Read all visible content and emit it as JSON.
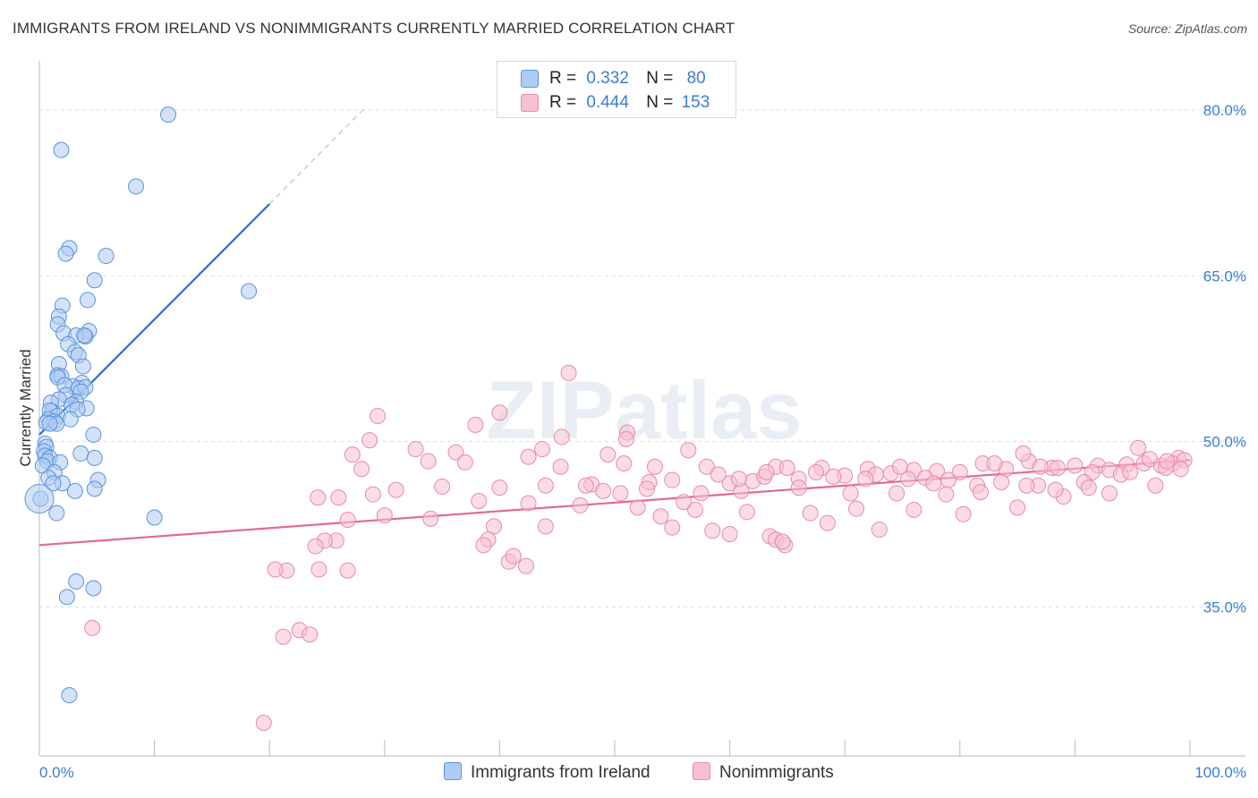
{
  "title": "IMMIGRANTS FROM IRELAND VS NONIMMIGRANTS CURRENTLY MARRIED CORRELATION CHART",
  "source": "Source: ZipAtlas.com",
  "watermark": "ZIPatlas",
  "legend": {
    "rows": [
      {
        "r_label": "R =",
        "r_value": "0.332",
        "n_label": "N =",
        "n_value": "80"
      },
      {
        "r_label": "R =",
        "r_value": "0.444",
        "n_label": "N =",
        "n_value": "153"
      }
    ]
  },
  "bottom_legend": {
    "series1": "Immigrants from Ireland",
    "series2": "Nonimmigrants"
  },
  "chart_data": {
    "type": "scatter",
    "ylabel": "Currently Married",
    "xlim": [
      0,
      100
    ],
    "ylim": [
      21.5,
      83.5
    ],
    "x_ticks": [
      {
        "value": 0,
        "label": "0.0%"
      },
      {
        "value": 100,
        "label": "100.0%"
      }
    ],
    "y_ticks": [
      {
        "value": 35,
        "label": "35.0%"
      },
      {
        "value": 50,
        "label": "50.0%"
      },
      {
        "value": 65,
        "label": "65.0%"
      },
      {
        "value": 80,
        "label": "80.0%"
      }
    ],
    "grid": true,
    "legend_position": "top-center",
    "colors": {
      "ireland_fill": "#aecbf2",
      "ireland_stroke": "#5c93dc",
      "ireland_line": "#2b6fd0",
      "nonimm_fill": "#f7c0d2",
      "nonimm_stroke": "#e88aa8",
      "nonimm_line": "#e06a93",
      "tick_text": "#3d7dd1"
    },
    "series": [
      {
        "name": "Immigrants from Ireland",
        "r": 0.332,
        "n": 80,
        "trend": {
          "x0": 0,
          "y0": 50.6,
          "x1": 20,
          "y1": 71.5,
          "dash_to_x": 28.2,
          "dash_to_y": 80.1
        },
        "points": [
          [
            11.2,
            79.6
          ],
          [
            1.9,
            76.4
          ],
          [
            8.4,
            73.1
          ],
          [
            5.8,
            66.8
          ],
          [
            2.6,
            67.5
          ],
          [
            2.3,
            67.0
          ],
          [
            4.8,
            64.6
          ],
          [
            18.2,
            63.6
          ],
          [
            4.2,
            62.8
          ],
          [
            2.0,
            62.3
          ],
          [
            1.7,
            61.3
          ],
          [
            1.6,
            60.6
          ],
          [
            4.3,
            60.0
          ],
          [
            2.1,
            59.8
          ],
          [
            3.2,
            59.6
          ],
          [
            4.0,
            59.5
          ],
          [
            3.9,
            59.6
          ],
          [
            2.5,
            58.8
          ],
          [
            3.1,
            58.1
          ],
          [
            3.4,
            57.8
          ],
          [
            1.7,
            57.0
          ],
          [
            3.8,
            56.8
          ],
          [
            1.6,
            56.0
          ],
          [
            1.9,
            55.9
          ],
          [
            1.6,
            55.8
          ],
          [
            3.7,
            55.3
          ],
          [
            2.9,
            55.0
          ],
          [
            2.2,
            55.1
          ],
          [
            3.4,
            54.8
          ],
          [
            4.0,
            54.9
          ],
          [
            3.6,
            54.5
          ],
          [
            2.3,
            54.2
          ],
          [
            1.7,
            53.8
          ],
          [
            3.2,
            53.6
          ],
          [
            1.0,
            53.5
          ],
          [
            2.8,
            53.3
          ],
          [
            4.1,
            53.0
          ],
          [
            3.3,
            52.9
          ],
          [
            1.1,
            52.7
          ],
          [
            0.9,
            52.8
          ],
          [
            1.6,
            52.3
          ],
          [
            0.8,
            52.0
          ],
          [
            1.3,
            51.8
          ],
          [
            2.7,
            52.0
          ],
          [
            0.6,
            51.7
          ],
          [
            1.5,
            51.6
          ],
          [
            0.9,
            51.6
          ],
          [
            4.7,
            50.6
          ],
          [
            0.5,
            49.8
          ],
          [
            0.6,
            49.5
          ],
          [
            0.4,
            49.1
          ],
          [
            3.6,
            48.9
          ],
          [
            0.5,
            48.7
          ],
          [
            0.9,
            48.5
          ],
          [
            4.8,
            48.5
          ],
          [
            0.7,
            48.2
          ],
          [
            1.8,
            48.1
          ],
          [
            0.3,
            47.8
          ],
          [
            1.3,
            47.2
          ],
          [
            0.8,
            46.7
          ],
          [
            5.1,
            46.5
          ],
          [
            2.0,
            46.2
          ],
          [
            1.2,
            46.2
          ],
          [
            4.8,
            45.7
          ],
          [
            3.1,
            45.5
          ],
          [
            0.1,
            44.8
          ],
          [
            1.5,
            43.5
          ],
          [
            10.0,
            43.1
          ],
          [
            3.2,
            37.3
          ],
          [
            4.7,
            36.7
          ],
          [
            2.4,
            35.9
          ],
          [
            2.6,
            27.0
          ]
        ]
      },
      {
        "name": "Nonimmigrants",
        "r": 0.444,
        "n": 153,
        "trend": {
          "x0": 0,
          "y0": 40.6,
          "x1": 100,
          "y1": 48.3
        },
        "points": [
          [
            46.0,
            56.2
          ],
          [
            40.0,
            52.6
          ],
          [
            29.4,
            52.3
          ],
          [
            37.9,
            51.5
          ],
          [
            51.1,
            50.8
          ],
          [
            45.4,
            50.4
          ],
          [
            28.7,
            50.1
          ],
          [
            32.7,
            49.3
          ],
          [
            43.7,
            49.3
          ],
          [
            36.2,
            49.0
          ],
          [
            56.4,
            49.2
          ],
          [
            49.4,
            48.8
          ],
          [
            27.2,
            48.8
          ],
          [
            42.5,
            48.6
          ],
          [
            33.8,
            48.2
          ],
          [
            37.0,
            48.1
          ],
          [
            28.0,
            47.5
          ],
          [
            50.8,
            48.0
          ],
          [
            58.0,
            47.7
          ],
          [
            64.0,
            47.7
          ],
          [
            68.0,
            47.6
          ],
          [
            72.0,
            47.5
          ],
          [
            76.0,
            47.4
          ],
          [
            80.0,
            47.2
          ],
          [
            84.0,
            47.5
          ],
          [
            88.0,
            47.6
          ],
          [
            92.0,
            47.8
          ],
          [
            96.0,
            48.0
          ],
          [
            99.0,
            48.5
          ],
          [
            86.0,
            48.2
          ],
          [
            82.0,
            48.0
          ],
          [
            78.0,
            47.3
          ],
          [
            74.0,
            47.1
          ],
          [
            70.0,
            46.9
          ],
          [
            66.0,
            46.6
          ],
          [
            62.0,
            46.4
          ],
          [
            60.0,
            46.2
          ],
          [
            55.0,
            46.5
          ],
          [
            53.0,
            46.3
          ],
          [
            48.0,
            46.1
          ],
          [
            44.0,
            46.0
          ],
          [
            40.0,
            45.8
          ],
          [
            35.0,
            45.9
          ],
          [
            31.0,
            45.6
          ],
          [
            29.0,
            45.2
          ],
          [
            26.0,
            44.9
          ],
          [
            24.2,
            44.9
          ],
          [
            38.2,
            44.6
          ],
          [
            42.5,
            44.4
          ],
          [
            47.0,
            44.2
          ],
          [
            52.0,
            44.0
          ],
          [
            57.0,
            43.8
          ],
          [
            61.5,
            43.6
          ],
          [
            67.0,
            43.5
          ],
          [
            71.0,
            43.9
          ],
          [
            76.0,
            43.8
          ],
          [
            80.3,
            43.4
          ],
          [
            85.0,
            44.0
          ],
          [
            89.0,
            45.0
          ],
          [
            93.0,
            45.3
          ],
          [
            97.0,
            46.0
          ],
          [
            30.0,
            43.3
          ],
          [
            34.0,
            43.0
          ],
          [
            39.5,
            42.3
          ],
          [
            44.0,
            42.3
          ],
          [
            54.0,
            43.2
          ],
          [
            58.5,
            41.9
          ],
          [
            63.5,
            41.4
          ],
          [
            68.5,
            42.6
          ],
          [
            73.0,
            42.0
          ],
          [
            26.8,
            42.9
          ],
          [
            25.8,
            41.0
          ],
          [
            24.8,
            41.0
          ],
          [
            24.0,
            40.5
          ],
          [
            39.0,
            41.1
          ],
          [
            38.6,
            40.6
          ],
          [
            55.0,
            42.2
          ],
          [
            60.0,
            41.6
          ],
          [
            64.0,
            41.1
          ],
          [
            64.8,
            40.6
          ],
          [
            64.6,
            40.9
          ],
          [
            40.8,
            39.1
          ],
          [
            41.2,
            39.6
          ],
          [
            42.3,
            38.7
          ],
          [
            21.5,
            38.3
          ],
          [
            24.3,
            38.4
          ],
          [
            26.8,
            38.3
          ],
          [
            4.6,
            33.1
          ],
          [
            21.2,
            32.3
          ],
          [
            22.6,
            32.9
          ],
          [
            23.5,
            32.5
          ],
          [
            19.5,
            24.5
          ],
          [
            51.0,
            50.2
          ],
          [
            59.0,
            47.0
          ],
          [
            63.0,
            46.8
          ],
          [
            65.0,
            47.6
          ],
          [
            69.0,
            46.8
          ],
          [
            72.7,
            47.0
          ],
          [
            75.5,
            46.6
          ],
          [
            77.0,
            46.7
          ],
          [
            79.0,
            46.5
          ],
          [
            81.5,
            46.0
          ],
          [
            83.0,
            48.0
          ],
          [
            85.5,
            48.9
          ],
          [
            87.0,
            47.7
          ],
          [
            88.5,
            47.6
          ],
          [
            90.0,
            47.8
          ],
          [
            91.5,
            47.2
          ],
          [
            93.0,
            47.4
          ],
          [
            94.5,
            47.9
          ],
          [
            95.5,
            49.4
          ],
          [
            96.5,
            48.4
          ],
          [
            97.5,
            47.8
          ],
          [
            98.5,
            48.0
          ],
          [
            99.5,
            48.3
          ],
          [
            83.6,
            46.3
          ],
          [
            86.8,
            46.0
          ],
          [
            90.8,
            46.3
          ],
          [
            94.0,
            47.0
          ],
          [
            97.9,
            47.6
          ],
          [
            99.2,
            47.5
          ],
          [
            52.8,
            45.7
          ],
          [
            56.0,
            44.5
          ],
          [
            61.0,
            45.5
          ],
          [
            66.0,
            45.8
          ],
          [
            70.5,
            45.3
          ],
          [
            74.5,
            45.3
          ],
          [
            78.8,
            45.2
          ],
          [
            81.8,
            45.4
          ],
          [
            85.8,
            46.0
          ],
          [
            88.3,
            45.6
          ],
          [
            91.2,
            45.8
          ],
          [
            94.8,
            47.2
          ],
          [
            98.0,
            48.2
          ],
          [
            20.5,
            38.4
          ],
          [
            45.3,
            47.7
          ],
          [
            47.5,
            46.0
          ],
          [
            49.0,
            45.5
          ],
          [
            50.5,
            45.3
          ],
          [
            53.5,
            47.7
          ],
          [
            57.5,
            45.3
          ],
          [
            60.8,
            46.6
          ],
          [
            63.2,
            47.2
          ],
          [
            67.5,
            47.2
          ],
          [
            71.8,
            46.6
          ],
          [
            74.8,
            47.7
          ],
          [
            77.7,
            46.2
          ]
        ]
      }
    ]
  }
}
